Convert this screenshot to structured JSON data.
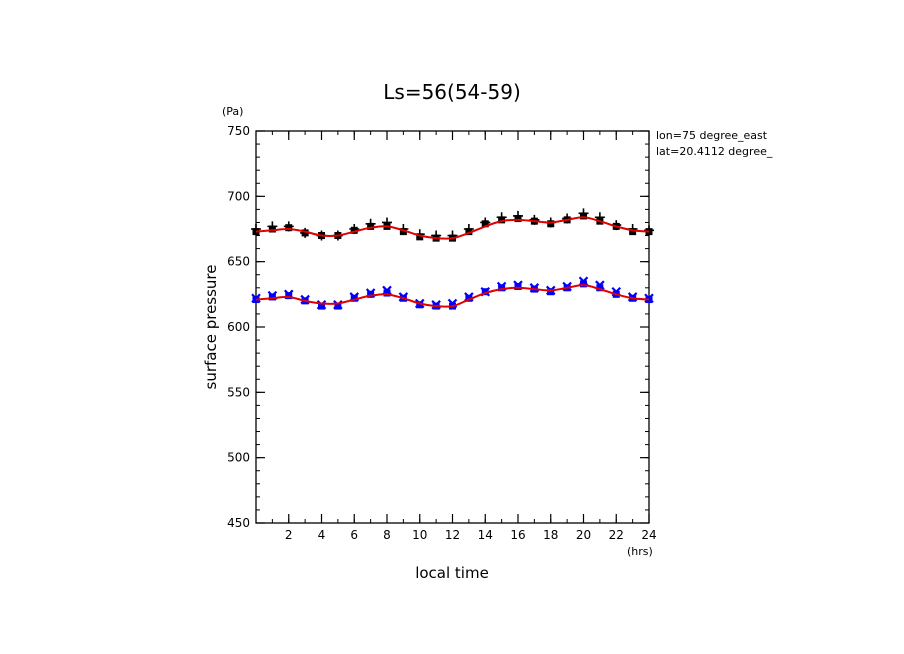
{
  "chart_data": {
    "type": "scatter",
    "title": "Ls=56(54-59)",
    "xlabel": "local time",
    "ylabel": "surface pressure",
    "x_unit": "(hrs)",
    "y_unit": "(Pa)",
    "xlim": [
      0,
      24
    ],
    "ylim": [
      450,
      750
    ],
    "x_ticks": [
      2,
      4,
      6,
      8,
      10,
      12,
      14,
      16,
      18,
      20,
      22,
      24
    ],
    "y_ticks": [
      450,
      500,
      550,
      600,
      650,
      700,
      750
    ],
    "annotations": [
      "lon=75 degree_east",
      "lat=20.4112 degree_"
    ],
    "grid": false,
    "series": [
      {
        "marker": "plus",
        "color": "#000000",
        "x": [
          0,
          1,
          2,
          3,
          4,
          5,
          6,
          7,
          8,
          9,
          10,
          11,
          12,
          13,
          14,
          15,
          16,
          17,
          18,
          19,
          20,
          21,
          22,
          23,
          24
        ],
        "y": [
          675,
          677,
          677,
          672,
          670,
          670,
          675,
          679,
          680,
          675,
          671,
          670,
          670,
          675,
          680,
          684,
          685,
          682,
          680,
          683,
          687,
          684,
          678,
          675,
          674
        ]
      },
      {
        "marker": "square",
        "color": "#000000",
        "x": [
          0,
          1,
          2,
          3,
          4,
          5,
          6,
          7,
          8,
          9,
          10,
          11,
          12,
          13,
          14,
          15,
          16,
          17,
          18,
          19,
          20,
          21,
          22,
          23,
          24
        ],
        "y": [
          673,
          675,
          676,
          672,
          670,
          670,
          674,
          677,
          677,
          673,
          669,
          668,
          668,
          673,
          679,
          682,
          683,
          681,
          679,
          682,
          685,
          681,
          677,
          673,
          673
        ]
      },
      {
        "marker": "line",
        "color": "#e00000",
        "x": [
          0,
          1,
          2,
          3,
          4,
          5,
          6,
          7,
          8,
          9,
          10,
          11,
          12,
          13,
          14,
          15,
          16,
          17,
          18,
          19,
          20,
          21,
          22,
          23,
          24
        ],
        "y": [
          673,
          674,
          675,
          673,
          670,
          670,
          673,
          676,
          677,
          674,
          670,
          668,
          668,
          672,
          677,
          681,
          682,
          681,
          680,
          682,
          684,
          681,
          677,
          674,
          673
        ]
      },
      {
        "marker": "x",
        "color": "#0000ff",
        "x": [
          0,
          1,
          2,
          3,
          4,
          5,
          6,
          7,
          8,
          9,
          10,
          11,
          12,
          13,
          14,
          15,
          16,
          17,
          18,
          19,
          20,
          21,
          22,
          23,
          24
        ],
        "y": [
          622,
          624,
          625,
          621,
          617,
          617,
          623,
          626,
          628,
          623,
          618,
          617,
          618,
          623,
          627,
          631,
          632,
          630,
          628,
          631,
          635,
          632,
          627,
          623,
          622
        ]
      },
      {
        "marker": "square",
        "color": "#0000ff",
        "x": [
          0,
          1,
          2,
          3,
          4,
          5,
          6,
          7,
          8,
          9,
          10,
          11,
          12,
          13,
          14,
          15,
          16,
          17,
          18,
          19,
          20,
          21,
          22,
          23,
          24
        ],
        "y": [
          621,
          623,
          624,
          620,
          616,
          616,
          622,
          625,
          626,
          622,
          617,
          616,
          616,
          622,
          627,
          630,
          631,
          629,
          627,
          630,
          633,
          630,
          625,
          622,
          621
        ]
      },
      {
        "marker": "line",
        "color": "#e00000",
        "x": [
          0,
          1,
          2,
          3,
          4,
          5,
          6,
          7,
          8,
          9,
          10,
          11,
          12,
          13,
          14,
          15,
          16,
          17,
          18,
          19,
          20,
          21,
          22,
          23,
          24
        ],
        "y": [
          621,
          622,
          623,
          620,
          618,
          618,
          621,
          624,
          625,
          622,
          618,
          616,
          616,
          621,
          626,
          629,
          630,
          629,
          628,
          630,
          632,
          629,
          625,
          622,
          621
        ]
      }
    ]
  }
}
